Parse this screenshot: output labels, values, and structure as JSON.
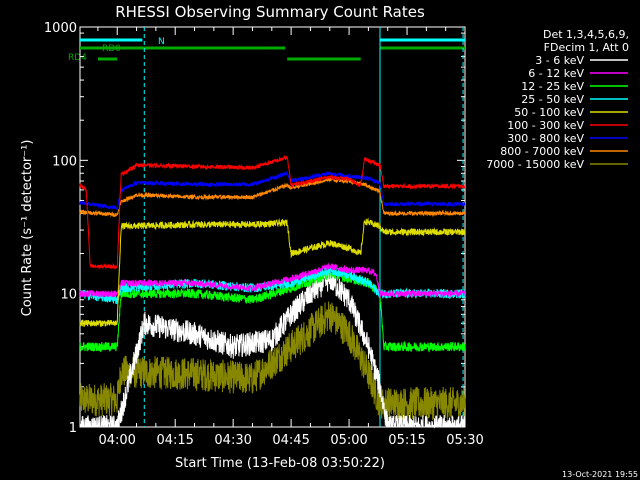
{
  "chart_data": {
    "type": "line",
    "title": "RHESSI Observing Summary Count Rates",
    "xlabel": "Start Time (13-Feb-08 03:50:22)",
    "ylabel": "Count Rate (s⁻¹ detector⁻¹)",
    "ylog": true,
    "ylim": [
      1,
      1000
    ],
    "xlim": [
      "03:50:22",
      "05:30:00"
    ],
    "x_ticks": [
      "04:00",
      "04:15",
      "04:30",
      "04:45",
      "05:00",
      "05:15",
      "05:30"
    ],
    "y_ticks": [
      "1",
      "10",
      "100",
      "1000"
    ],
    "legend_header": [
      "Det 1,3,4,5,6,9,",
      "FDecim 1, Att 0"
    ],
    "footer_date": "13-Oct-2021 19:55",
    "annotations": {
      "rd0_label": "RD0",
      "rd4_label": "RD4",
      "n_label": "N"
    },
    "indicator_bars": [
      {
        "label": "N",
        "color": "#00ffff",
        "segments": [
          [
            "03:50:22",
            "04:06:30"
          ],
          [
            "05:08:00",
            "05:30:00"
          ]
        ]
      },
      {
        "label": "RD0",
        "color": "#00aa00",
        "segments": [
          [
            "03:50:22",
            "04:43:30"
          ],
          [
            "05:08:00",
            "05:30:00"
          ]
        ]
      },
      {
        "label": "RD4",
        "color": "#00aa00",
        "segments": [
          [
            "03:55:00",
            "04:00:00"
          ],
          [
            "04:44:00",
            "05:03:00"
          ]
        ]
      }
    ],
    "vlines": [
      {
        "time": "04:07:00",
        "color": "#00ffff",
        "style": "dashed"
      },
      {
        "time": "05:08:00",
        "color": "#00ffff",
        "style": "solid"
      },
      {
        "time": "05:29:30",
        "color": "#00ffff",
        "style": "dashed"
      }
    ],
    "series": [
      {
        "name": "3 - 6 keV",
        "color": "#ffffff",
        "noise": 0.18,
        "points": [
          [
            "03:50:22",
            1
          ],
          [
            "04:00",
            1
          ],
          [
            "04:07",
            6
          ],
          [
            "04:20",
            5
          ],
          [
            "04:30",
            4
          ],
          [
            "04:40",
            4.5
          ],
          [
            "04:45",
            7
          ],
          [
            "04:50",
            10
          ],
          [
            "04:55",
            13
          ],
          [
            "05:00",
            9
          ],
          [
            "05:05",
            4
          ],
          [
            "05:08",
            2
          ],
          [
            "05:10",
            1
          ],
          [
            "05:30",
            1
          ]
        ]
      },
      {
        "name": "6 - 12 keV",
        "color": "#ff00ff",
        "noise": 0.05,
        "points": [
          [
            "03:50:22",
            10
          ],
          [
            "04:00",
            10
          ],
          [
            "04:01",
            12
          ],
          [
            "04:20",
            12
          ],
          [
            "04:35",
            11
          ],
          [
            "04:45",
            13
          ],
          [
            "04:55",
            16
          ],
          [
            "05:00",
            15
          ],
          [
            "05:05",
            15
          ],
          [
            "05:07",
            14
          ],
          [
            "05:08",
            10
          ],
          [
            "05:30",
            10
          ]
        ]
      },
      {
        "name": "12 - 25 keV",
        "color": "#00ff00",
        "noise": 0.07,
        "points": [
          [
            "03:50:22",
            4
          ],
          [
            "04:00",
            4
          ],
          [
            "04:01",
            10
          ],
          [
            "04:20",
            10
          ],
          [
            "04:35",
            9
          ],
          [
            "04:45",
            11
          ],
          [
            "04:55",
            14
          ],
          [
            "05:00",
            13
          ],
          [
            "05:05",
            12
          ],
          [
            "05:08",
            10
          ],
          [
            "05:09",
            4
          ],
          [
            "05:30",
            4
          ]
        ]
      },
      {
        "name": "25 - 50 keV",
        "color": "#00ffff",
        "noise": 0.07,
        "points": [
          [
            "03:50:22",
            10
          ],
          [
            "04:00",
            9
          ],
          [
            "04:01",
            11
          ],
          [
            "04:20",
            12
          ],
          [
            "04:35",
            11
          ],
          [
            "04:45",
            12
          ],
          [
            "04:55",
            15
          ],
          [
            "05:00",
            14
          ],
          [
            "05:05",
            12
          ],
          [
            "05:08",
            10
          ],
          [
            "05:30",
            10
          ]
        ]
      },
      {
        "name": "50 - 100 keV",
        "color": "#dddd00",
        "noise": 0.05,
        "points": [
          [
            "03:50:22",
            6
          ],
          [
            "04:00",
            6
          ],
          [
            "04:01",
            32
          ],
          [
            "04:20",
            33
          ],
          [
            "04:35",
            33
          ],
          [
            "04:44",
            34
          ],
          [
            "04:45",
            20
          ],
          [
            "04:55",
            24
          ],
          [
            "05:00",
            22
          ],
          [
            "05:03",
            20
          ],
          [
            "05:04",
            35
          ],
          [
            "05:08",
            32
          ],
          [
            "05:09",
            29
          ],
          [
            "05:30",
            29
          ]
        ]
      },
      {
        "name": "100 - 300 keV",
        "color": "#ff0000",
        "noise": 0.03,
        "points": [
          [
            "03:50:22",
            65
          ],
          [
            "03:52",
            60
          ],
          [
            "03:53",
            16
          ],
          [
            "04:00",
            16
          ],
          [
            "04:01",
            78
          ],
          [
            "04:05",
            92
          ],
          [
            "04:20",
            90
          ],
          [
            "04:35",
            88
          ],
          [
            "04:44",
            105
          ],
          [
            "04:45",
            65
          ],
          [
            "04:55",
            75
          ],
          [
            "05:00",
            72
          ],
          [
            "05:03",
            65
          ],
          [
            "05:04",
            102
          ],
          [
            "05:08",
            92
          ],
          [
            "05:09",
            64
          ],
          [
            "05:30",
            64
          ]
        ]
      },
      {
        "name": "300 - 800 keV",
        "color": "#0000ff",
        "noise": 0.03,
        "points": [
          [
            "03:50:22",
            48
          ],
          [
            "04:00",
            44
          ],
          [
            "04:01",
            60
          ],
          [
            "04:05",
            68
          ],
          [
            "04:20",
            66
          ],
          [
            "04:35",
            66
          ],
          [
            "04:44",
            80
          ],
          [
            "04:45",
            70
          ],
          [
            "04:55",
            80
          ],
          [
            "05:00",
            76
          ],
          [
            "05:04",
            74
          ],
          [
            "05:08",
            68
          ],
          [
            "05:09",
            47
          ],
          [
            "05:30",
            47
          ]
        ]
      },
      {
        "name": "800 - 7000 keV",
        "color": "#ff8800",
        "noise": 0.03,
        "points": [
          [
            "03:50:22",
            41
          ],
          [
            "04:00",
            39
          ],
          [
            "04:01",
            49
          ],
          [
            "04:05",
            55
          ],
          [
            "04:20",
            53
          ],
          [
            "04:35",
            53
          ],
          [
            "04:44",
            65
          ],
          [
            "04:45",
            62
          ],
          [
            "04:55",
            72
          ],
          [
            "05:00",
            70
          ],
          [
            "05:04",
            66
          ],
          [
            "05:08",
            58
          ],
          [
            "05:09",
            40
          ],
          [
            "05:30",
            40
          ]
        ]
      },
      {
        "name": "7000 - 15000 keV",
        "color": "#888800",
        "noise": 0.25,
        "points": [
          [
            "03:50:22",
            1.6
          ],
          [
            "04:00",
            1.6
          ],
          [
            "04:01",
            2.6
          ],
          [
            "04:20",
            2.5
          ],
          [
            "04:35",
            2.3
          ],
          [
            "04:45",
            4
          ],
          [
            "04:55",
            7
          ],
          [
            "05:00",
            5
          ],
          [
            "05:05",
            2.5
          ],
          [
            "05:08",
            1.5
          ],
          [
            "05:30",
            1.5
          ]
        ]
      }
    ]
  }
}
